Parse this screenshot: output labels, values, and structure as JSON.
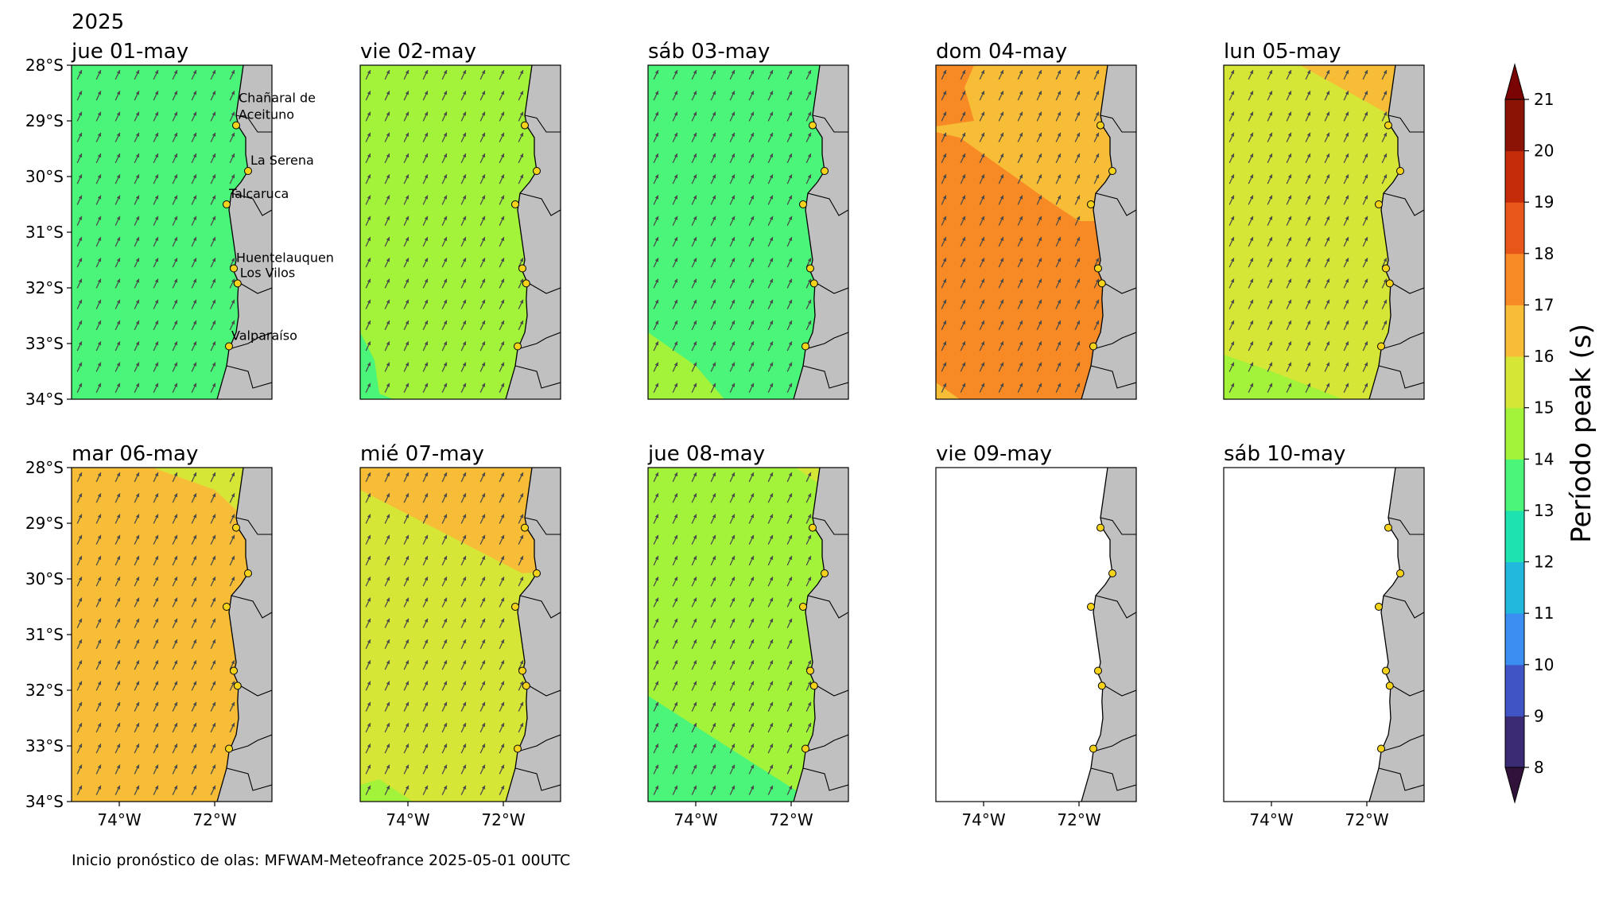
{
  "figure": {
    "year": "2025",
    "footer": "Inicio pronóstico de olas: MFWAM-Meteofrance 2025-05-01 00UTC"
  },
  "axes": {
    "lat_ticks": [
      "28°S",
      "29°S",
      "30°S",
      "31°S",
      "32°S",
      "33°S",
      "34°S"
    ],
    "lon_ticks": [
      "74°W",
      "72°W"
    ],
    "lon_range": [
      -75.0,
      -70.8
    ],
    "lat_range": [
      -34.0,
      -28.0
    ]
  },
  "locations": [
    {
      "name": "Chañaral de\nAceituno",
      "lon": -71.55,
      "lat": -29.08
    },
    {
      "name": "La Serena",
      "lon": -71.3,
      "lat": -29.9
    },
    {
      "name": "Talcaruca",
      "lon": -71.75,
      "lat": -30.5
    },
    {
      "name": "Huentelauquen",
      "lon": -71.6,
      "lat": -31.65
    },
    {
      "name": "Los Vilos",
      "lon": -71.52,
      "lat": -31.92
    },
    {
      "name": "Valparaíso",
      "lon": -71.7,
      "lat": -33.05
    }
  ],
  "panels": [
    {
      "title": "jue 01-may",
      "regions": [
        {
          "period": 13.5,
          "poly": [
            [
              -75,
              -28
            ],
            [
              -70.8,
              -28
            ],
            [
              -70.8,
              -34
            ],
            [
              -75,
              -34
            ]
          ]
        }
      ]
    },
    {
      "title": "vie 02-may",
      "regions": [
        {
          "period": 14.5,
          "poly": [
            [
              -75,
              -28
            ],
            [
              -70.8,
              -28
            ],
            [
              -70.8,
              -34
            ],
            [
              -75,
              -34
            ]
          ]
        },
        {
          "period": 13.5,
          "poly": [
            [
              -75,
              -32.8
            ],
            [
              -74.7,
              -33.3
            ],
            [
              -74.6,
              -33.9
            ],
            [
              -74.3,
              -34
            ],
            [
              -75,
              -34
            ]
          ]
        }
      ]
    },
    {
      "title": "sáb 03-may",
      "regions": [
        {
          "period": 13.5,
          "poly": [
            [
              -75,
              -28
            ],
            [
              -70.8,
              -28
            ],
            [
              -70.8,
              -34
            ],
            [
              -75,
              -34
            ]
          ]
        },
        {
          "period": 14.5,
          "poly": [
            [
              -75,
              -32.8
            ],
            [
              -74,
              -33.4
            ],
            [
              -73.4,
              -34
            ],
            [
              -75,
              -34
            ]
          ]
        }
      ]
    },
    {
      "title": "dom 04-may",
      "regions": [
        {
          "period": 16.5,
          "poly": [
            [
              -75,
              -28
            ],
            [
              -70.8,
              -28
            ],
            [
              -70.8,
              -34
            ],
            [
              -75,
              -34
            ]
          ]
        },
        {
          "period": 17.5,
          "poly": [
            [
              -75,
              -28
            ],
            [
              -74.2,
              -28
            ],
            [
              -74.4,
              -28.4
            ],
            [
              -74.2,
              -29
            ],
            [
              -75,
              -29.1
            ]
          ]
        },
        {
          "period": 17.5,
          "poly": [
            [
              -75,
              -29.2
            ],
            [
              -74.5,
              -29.3
            ],
            [
              -72.7,
              -30.4
            ],
            [
              -72.0,
              -30.8
            ],
            [
              -70.8,
              -30.8
            ],
            [
              -70.8,
              -34
            ],
            [
              -74.5,
              -34
            ],
            [
              -75,
              -33.7
            ]
          ]
        }
      ]
    },
    {
      "title": "lun 05-may",
      "regions": [
        {
          "period": 15.5,
          "poly": [
            [
              -75,
              -28
            ],
            [
              -70.8,
              -28
            ],
            [
              -70.8,
              -34
            ],
            [
              -75,
              -34
            ]
          ]
        },
        {
          "period": 16.5,
          "poly": [
            [
              -73.4,
              -28
            ],
            [
              -70.8,
              -28
            ],
            [
              -70.8,
              -28.9
            ],
            [
              -71.5,
              -28.9
            ]
          ]
        },
        {
          "period": 14.5,
          "poly": [
            [
              -75,
              -33.2
            ],
            [
              -74,
              -33.5
            ],
            [
              -72.5,
              -34
            ],
            [
              -75,
              -34
            ]
          ]
        }
      ]
    },
    {
      "title": "mar 06-may",
      "regions": [
        {
          "period": 16.5,
          "poly": [
            [
              -75,
              -28
            ],
            [
              -70.8,
              -28
            ],
            [
              -70.8,
              -34
            ],
            [
              -75,
              -34
            ]
          ]
        },
        {
          "period": 15.5,
          "poly": [
            [
              -73.3,
              -28
            ],
            [
              -70.8,
              -28
            ],
            [
              -70.8,
              -28.8
            ],
            [
              -71.5,
              -28.8
            ],
            [
              -72.0,
              -28.4
            ]
          ]
        }
      ]
    },
    {
      "title": "mié 07-may",
      "regions": [
        {
          "period": 15.5,
          "poly": [
            [
              -75,
              -28
            ],
            [
              -70.8,
              -28
            ],
            [
              -70.8,
              -34
            ],
            [
              -75,
              -34
            ]
          ]
        },
        {
          "period": 16.5,
          "poly": [
            [
              -75,
              -28
            ],
            [
              -70.8,
              -28
            ],
            [
              -70.8,
              -29.85
            ],
            [
              -71.6,
              -29.9
            ],
            [
              -75,
              -28.4
            ]
          ]
        },
        {
          "period": 14.5,
          "poly": [
            [
              -75,
              -33.7
            ],
            [
              -74.6,
              -33.6
            ],
            [
              -73.9,
              -34
            ],
            [
              -75,
              -34
            ]
          ]
        }
      ]
    },
    {
      "title": "jue 08-may",
      "regions": [
        {
          "period": 14.5,
          "poly": [
            [
              -75,
              -28
            ],
            [
              -70.8,
              -28
            ],
            [
              -70.8,
              -34
            ],
            [
              -75,
              -34
            ]
          ]
        },
        {
          "period": 15.5,
          "poly": [
            [
              -71.9,
              -28
            ],
            [
              -70.8,
              -28
            ],
            [
              -70.8,
              -28.3
            ],
            [
              -71.4,
              -28.3
            ]
          ]
        },
        {
          "period": 13.5,
          "poly": [
            [
              -75,
              -32.1
            ],
            [
              -73,
              -33.2
            ],
            [
              -71.9,
              -33.8
            ],
            [
              -71.7,
              -34
            ],
            [
              -75,
              -34
            ]
          ]
        }
      ]
    },
    {
      "title": "vie 09-may",
      "regions": []
    },
    {
      "title": "sáb 10-may",
      "regions": []
    }
  ],
  "colorbar": {
    "label": "Período peak (s)",
    "levels": [
      8,
      9,
      10,
      11,
      12,
      13,
      14,
      15,
      16,
      17,
      18,
      19,
      20,
      21
    ],
    "colors": [
      "#3b2a74",
      "#4154c6",
      "#3b8ef2",
      "#22b8de",
      "#1ee3b0",
      "#4bf57a",
      "#a2f33a",
      "#d6e636",
      "#f7bd36",
      "#f88a25",
      "#e9561a",
      "#c42c0a",
      "#8a1305"
    ],
    "under_color": "#30123b",
    "over_color": "#7a0403"
  },
  "land_color": "#c0c0c0",
  "marker_color": "#f5d31b"
}
